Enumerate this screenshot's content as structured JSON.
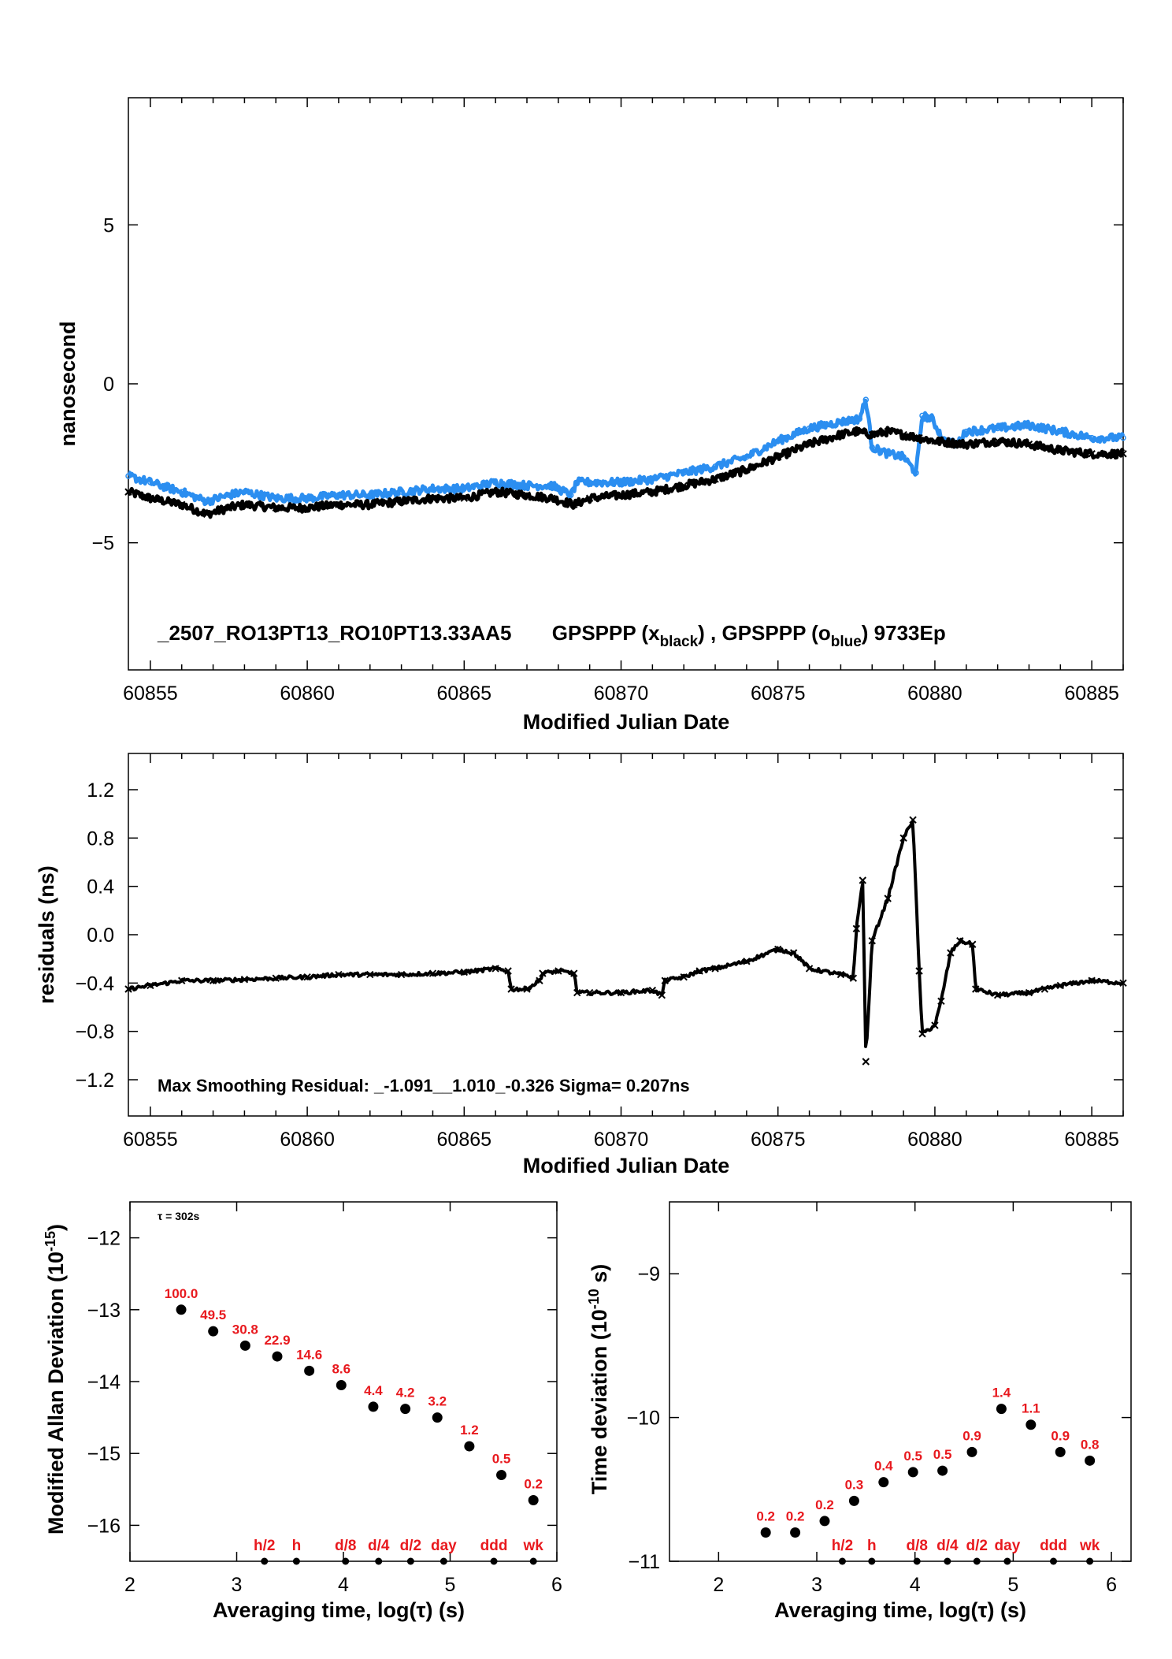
{
  "colors": {
    "series_black": "#000000",
    "series_blue": "#2b8ef0",
    "annot_red": "#e8191e"
  },
  "chart_data": [
    {
      "type": "scatter",
      "ylabel": "nanosecond",
      "xlabel": "Modified Julian Date",
      "annotation_main": "_2507_RO13PT13_RO10PT13.33AA5",
      "annotation_parts": [
        "GPSPPP (x",
        "black",
        ") ,  GPSPPP (o",
        "blue",
        ")  9733Ep"
      ],
      "xlim": [
        60854.3,
        60886
      ],
      "ylim": [
        -9,
        9
      ],
      "x_ticks": [
        60855,
        60860,
        60865,
        60870,
        60875,
        60880,
        60885
      ],
      "x_tick_labels": [
        "60855",
        "60860",
        "60865",
        "60870",
        "60875",
        "60880",
        "60885"
      ],
      "y_ticks": [
        -5,
        0,
        5
      ],
      "y_tick_labels": [
        "−5",
        "0",
        "5"
      ],
      "series": [
        {
          "color": "black",
          "marker": "x",
          "x": [
            60854.3,
            60855,
            60856,
            60856.8,
            60857.5,
            60858,
            60859,
            60860,
            60861,
            60862,
            60863,
            60864,
            60865,
            60866,
            60867,
            60867.8,
            60868.5,
            60869,
            60870,
            60871,
            60872,
            60873,
            60874,
            60875,
            60876,
            60877,
            60877.5,
            60878,
            60878.5,
            60879,
            60879.5,
            60880,
            60881,
            60882,
            60883,
            60884,
            60885,
            60886
          ],
          "y": [
            -3.4,
            -3.6,
            -3.8,
            -4.1,
            -3.9,
            -3.8,
            -3.9,
            -3.9,
            -3.8,
            -3.8,
            -3.7,
            -3.6,
            -3.6,
            -3.4,
            -3.5,
            -3.6,
            -3.8,
            -3.6,
            -3.5,
            -3.4,
            -3.2,
            -3.0,
            -2.7,
            -2.3,
            -1.9,
            -1.6,
            -1.5,
            -1.6,
            -1.5,
            -1.6,
            -1.7,
            -1.8,
            -1.9,
            -1.8,
            -1.9,
            -2.1,
            -2.2,
            -2.2
          ]
        },
        {
          "color": "blue",
          "marker": "o",
          "x": [
            60854.3,
            60855,
            60856,
            60856.8,
            60857.5,
            60858,
            60859,
            60860,
            60861,
            60862,
            60863,
            60864,
            60865,
            60866,
            60867,
            60867.8,
            60868.4,
            60868.6,
            60869,
            60870,
            60871,
            60872,
            60873,
            60874,
            60875,
            60876,
            60877,
            60877.6,
            60877.8,
            60878,
            60878.5,
            60879,
            60879.4,
            60879.6,
            60879.9,
            60880.3,
            60880.7,
            60881,
            60882,
            60883,
            60884,
            60885,
            60886
          ],
          "y": [
            -2.9,
            -3.1,
            -3.4,
            -3.7,
            -3.5,
            -3.4,
            -3.6,
            -3.6,
            -3.5,
            -3.5,
            -3.4,
            -3.3,
            -3.3,
            -3.1,
            -3.2,
            -3.2,
            -3.5,
            -3.1,
            -3.1,
            -3.1,
            -3.0,
            -2.8,
            -2.6,
            -2.3,
            -1.8,
            -1.4,
            -1.2,
            -1.1,
            -0.5,
            -2.0,
            -2.2,
            -2.3,
            -2.8,
            -1.0,
            -1.1,
            -1.8,
            -1.9,
            -1.5,
            -1.4,
            -1.3,
            -1.5,
            -1.7,
            -1.7
          ]
        }
      ]
    },
    {
      "type": "scatter",
      "ylabel": "residuals (ns)",
      "xlabel": "Modified Julian Date",
      "annotation": "Max Smoothing Residual: _-1.091__1.010_-0.326  Sigma= 0.207ns",
      "xlim": [
        60854.3,
        60886
      ],
      "ylim": [
        -1.5,
        1.5
      ],
      "x_ticks": [
        60855,
        60860,
        60865,
        60870,
        60875,
        60880,
        60885
      ],
      "x_tick_labels": [
        "60855",
        "60860",
        "60865",
        "60870",
        "60875",
        "60880",
        "60885"
      ],
      "y_ticks": [
        -1.2,
        -0.8,
        -0.4,
        0.0,
        0.4,
        0.8,
        1.2
      ],
      "y_tick_labels": [
        "−1.2",
        "−0.8",
        "−0.4",
        "0.0",
        "0.4",
        "0.8",
        "1.2"
      ],
      "series": [
        {
          "color": "black",
          "marker": "x",
          "x": [
            60854.3,
            60855,
            60856,
            60857,
            60858,
            60859,
            60860,
            60861,
            60862,
            60863,
            60864,
            60865,
            60866,
            60866.4,
            60866.5,
            60867,
            60867.4,
            60867.5,
            60868,
            60868.5,
            60868.6,
            60869,
            60870,
            60871,
            60871.3,
            60871.4,
            60872,
            60872.5,
            60873,
            60874,
            60875,
            60875.5,
            60876,
            60877,
            60877.4,
            60877.5,
            60877.7,
            60877.8,
            60878,
            60878.5,
            60879,
            60879.3,
            60879.5,
            60879.6,
            60880,
            60880.2,
            60880.5,
            60880.8,
            60881.2,
            60881.3,
            60882,
            60883,
            60883.5,
            60884,
            60885,
            60886
          ],
          "y": [
            -0.45,
            -0.42,
            -0.38,
            -0.38,
            -0.37,
            -0.36,
            -0.35,
            -0.33,
            -0.33,
            -0.33,
            -0.32,
            -0.31,
            -0.28,
            -0.3,
            -0.45,
            -0.45,
            -0.38,
            -0.32,
            -0.3,
            -0.32,
            -0.48,
            -0.48,
            -0.48,
            -0.46,
            -0.5,
            -0.38,
            -0.35,
            -0.3,
            -0.28,
            -0.22,
            -0.12,
            -0.15,
            -0.28,
            -0.33,
            -0.36,
            0.05,
            0.45,
            -1.05,
            -0.05,
            0.3,
            0.8,
            0.95,
            -0.3,
            -0.82,
            -0.75,
            -0.55,
            -0.15,
            -0.05,
            -0.08,
            -0.45,
            -0.5,
            -0.48,
            -0.45,
            -0.42,
            -0.38,
            -0.4
          ]
        }
      ]
    },
    {
      "type": "scatter",
      "ylabel_main": "Modified Allan Deviation (10",
      "ylabel_sup": "-15",
      "ylabel_end": ")",
      "xlabel": "Averaging time, log(τ) (s)",
      "annotation": "τ = 302s",
      "xlim": [
        2,
        6
      ],
      "ylim": [
        -16.5,
        -11.5
      ],
      "x_ticks": [
        2,
        3,
        4,
        5,
        6
      ],
      "x_tick_labels": [
        "2",
        "3",
        "4",
        "5",
        "6"
      ],
      "y_ticks": [
        -16,
        -15,
        -14,
        -13,
        -12
      ],
      "y_tick_labels": [
        "−16",
        "−15",
        "−14",
        "−13",
        "−12"
      ],
      "x": [
        2.48,
        2.78,
        3.08,
        3.38,
        3.68,
        3.98,
        4.28,
        4.58,
        4.88,
        5.18,
        5.48,
        5.78
      ],
      "y": [
        -13.0,
        -13.3,
        -13.5,
        -13.65,
        -13.85,
        -14.05,
        -14.35,
        -14.38,
        -14.5,
        -14.9,
        -15.3,
        -15.65
      ],
      "point_labels": [
        "100.0",
        "49.5",
        "30.8",
        "22.9",
        "14.6",
        "8.6",
        "4.4",
        "4.2",
        "3.2",
        "1.2",
        "0.5",
        "0.2"
      ],
      "markers_x": [
        3.26,
        3.56,
        4.02,
        4.33,
        4.63,
        4.94,
        5.41,
        5.78
      ],
      "markers_labels": [
        "h/2",
        "h",
        "d/8",
        "d/4",
        "d/2",
        "day",
        "ddd",
        "wk"
      ]
    },
    {
      "type": "scatter",
      "ylabel_main": "Time deviation (10",
      "ylabel_sup": "-10",
      "ylabel_end": " s)",
      "xlabel": "Averaging time, log(τ) (s)",
      "xlim": [
        1.5,
        6.2
      ],
      "ylim": [
        -11,
        -8.5
      ],
      "x_ticks": [
        2,
        3,
        4,
        5,
        6
      ],
      "x_tick_labels": [
        "2",
        "3",
        "4",
        "5",
        "6"
      ],
      "y_ticks": [
        -11,
        -10,
        -9
      ],
      "y_tick_labels": [
        "−11",
        "−10",
        "−9"
      ],
      "x": [
        2.48,
        2.78,
        3.08,
        3.38,
        3.68,
        3.98,
        4.28,
        4.58,
        4.88,
        5.18,
        5.48,
        5.78
      ],
      "y": [
        -10.8,
        -10.8,
        -10.72,
        -10.58,
        -10.45,
        -10.38,
        -10.37,
        -10.24,
        -9.94,
        -10.05,
        -10.24,
        -10.3
      ],
      "point_labels": [
        "0.2",
        "0.2",
        "0.2",
        "0.3",
        "0.4",
        "0.5",
        "0.5",
        "0.9",
        "1.4",
        "1.1",
        "0.9",
        "0.8"
      ],
      "markers_x": [
        3.26,
        3.56,
        4.02,
        4.33,
        4.63,
        4.94,
        5.41,
        5.78
      ],
      "markers_labels": [
        "h/2",
        "h",
        "d/8",
        "d/4",
        "d/2",
        "day",
        "ddd",
        "wk"
      ]
    }
  ]
}
